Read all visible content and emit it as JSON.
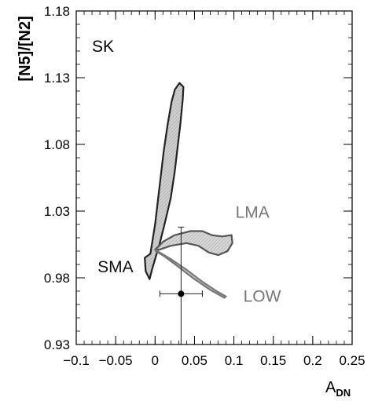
{
  "chart_data": {
    "type": "scatter",
    "title": "",
    "panel_label": "SK",
    "xlabel": "A",
    "xlabel_sub": "DN",
    "ylabel": "[N5]/[N2]",
    "xlim": [
      -0.1,
      0.25
    ],
    "ylim": [
      0.93,
      1.18
    ],
    "xticks": [
      -0.1,
      -0.05,
      0,
      0.05,
      0.1,
      0.15,
      0.2,
      0.25
    ],
    "xtick_labels": [
      "−0.1",
      "−0.05",
      "0",
      "0.05",
      "0.1",
      "0.15",
      "0.2",
      "0.25"
    ],
    "yticks": [
      0.93,
      0.98,
      1.03,
      1.08,
      1.13,
      1.18
    ],
    "ytick_labels": [
      "0.93",
      "0.98",
      "1.03",
      "1.08",
      "1.13",
      "1.18"
    ],
    "grid": false,
    "regions": [
      {
        "name": "SMA",
        "label": "SMA",
        "fill": "#cfcfcf",
        "stroke": "#222222",
        "label_at": [
          -0.073,
          0.984
        ],
        "outline": [
          [
            -0.006,
            0.998
          ],
          [
            0.0,
            1.02
          ],
          [
            0.006,
            1.05
          ],
          [
            0.011,
            1.075
          ],
          [
            0.016,
            1.095
          ],
          [
            0.021,
            1.112
          ],
          [
            0.025,
            1.121
          ],
          [
            0.031,
            1.126
          ],
          [
            0.036,
            1.123
          ],
          [
            0.035,
            1.113
          ],
          [
            0.032,
            1.095
          ],
          [
            0.029,
            1.08
          ],
          [
            0.025,
            1.06
          ],
          [
            0.02,
            1.04
          ],
          [
            0.012,
            1.02
          ],
          [
            0.006,
            1.006
          ],
          [
            0.002,
            0.998
          ],
          [
            -0.004,
            0.986
          ],
          [
            -0.007,
            0.979
          ],
          [
            -0.012,
            0.985
          ],
          [
            -0.013,
            0.995
          ]
        ]
      },
      {
        "name": "LMA",
        "label": "LMA",
        "fill": "#d8d8d8",
        "stroke": "#555555",
        "label_at": [
          0.102,
          1.025
        ],
        "outline": [
          [
            0.0,
            1.001
          ],
          [
            0.01,
            1.007
          ],
          [
            0.025,
            1.012
          ],
          [
            0.045,
            1.015
          ],
          [
            0.06,
            1.015
          ],
          [
            0.072,
            1.012
          ],
          [
            0.085,
            1.011
          ],
          [
            0.097,
            1.012
          ],
          [
            0.098,
            1.006
          ],
          [
            0.092,
            1.0
          ],
          [
            0.08,
            0.997
          ],
          [
            0.068,
            0.999
          ],
          [
            0.055,
            1.004
          ],
          [
            0.04,
            1.006
          ],
          [
            0.02,
            1.004
          ],
          [
            0.005,
            1.001
          ]
        ]
      },
      {
        "name": "LOW",
        "label": "LOW",
        "fill": "#d8d8d8",
        "stroke": "#777777",
        "label_at": [
          0.112,
          0.962
        ],
        "outline": [
          [
            0.0,
            1.001
          ],
          [
            0.02,
            0.994
          ],
          [
            0.04,
            0.986
          ],
          [
            0.06,
            0.977
          ],
          [
            0.078,
            0.97
          ],
          [
            0.09,
            0.966
          ],
          [
            0.088,
            0.965
          ],
          [
            0.07,
            0.971
          ],
          [
            0.05,
            0.979
          ],
          [
            0.03,
            0.988
          ],
          [
            0.012,
            0.996
          ],
          [
            0.001,
            1.0
          ]
        ]
      }
    ],
    "point": {
      "name": "measurement",
      "x": 0.033,
      "y": 0.968,
      "xerr": [
        0.027,
        0.027
      ],
      "yerr": [
        0.05,
        0.05
      ]
    }
  }
}
